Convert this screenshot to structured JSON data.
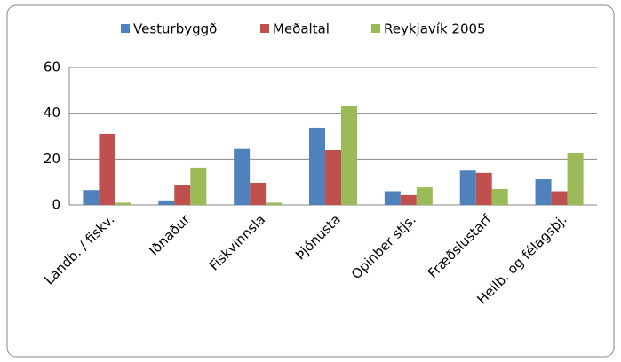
{
  "chart_data": {
    "type": "bar",
    "categories": [
      "Landb. / fiskv.",
      "Iðnaður",
      "Fiskvinnsla",
      "Þjónusta",
      "Opinber stjs.",
      "Fræðslustarf",
      "Heilb. og félagsþj."
    ],
    "series": [
      {
        "name": "Vesturbyggð",
        "color": "#4f81bd",
        "values": [
          6.5,
          2,
          24.5,
          33.7,
          6,
          15,
          11.2
        ]
      },
      {
        "name": "Meðaltal",
        "color": "#c0504d",
        "values": [
          31,
          8.5,
          9.7,
          24,
          4.3,
          14,
          6
        ]
      },
      {
        "name": "Reykjavík  2005",
        "color": "#9bbb59",
        "values": [
          1,
          16.3,
          1,
          43,
          7.7,
          7,
          22.8
        ]
      }
    ],
    "ylim": [
      0,
      60
    ],
    "yticks": [
      0,
      20,
      40,
      60
    ],
    "grid": true,
    "legend": "top"
  }
}
